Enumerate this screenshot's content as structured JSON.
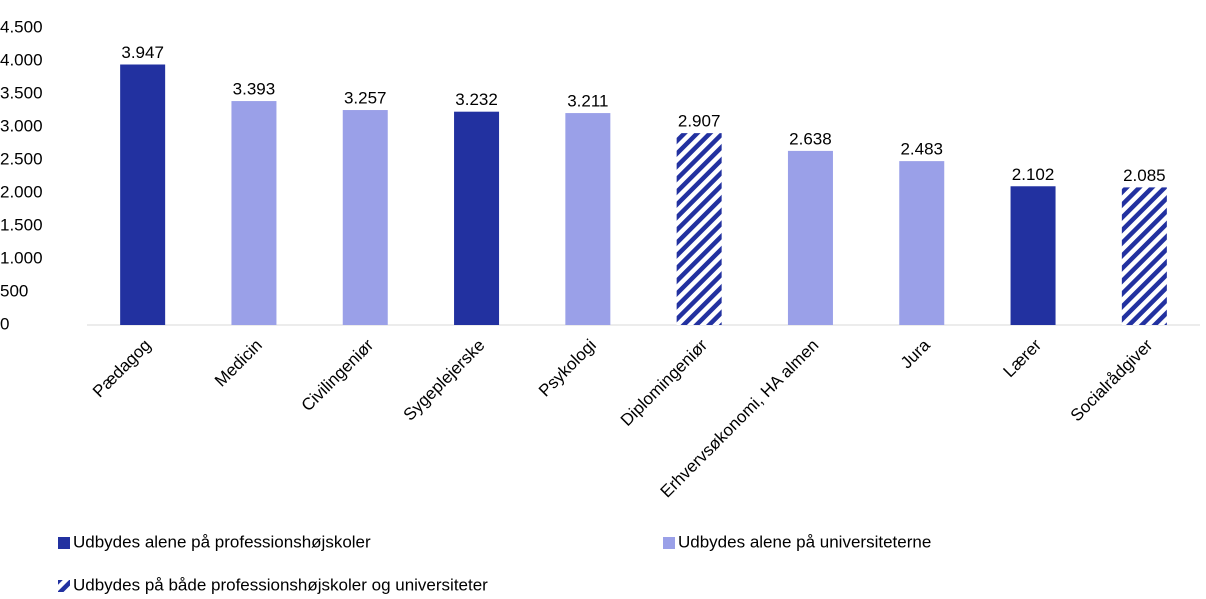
{
  "chart_data": {
    "type": "bar",
    "categories": [
      "Pædagog",
      "Medicin",
      "Civilingeniør",
      "Sygeplejerske",
      "Psykologi",
      "Diplomingeniør",
      "Erhvervsøkonomi, HA almen",
      "Jura",
      "Lærer",
      "Socialrådgiver"
    ],
    "series": [
      {
        "name": "Udbydes alene på professionshøjskoler",
        "color": "#2231a0",
        "values": [
          3947,
          null,
          null,
          3232,
          null,
          null,
          null,
          null,
          2102,
          null
        ],
        "value_labels": [
          "3.947",
          null,
          null,
          "3.232",
          null,
          null,
          null,
          null,
          "2.102",
          null
        ]
      },
      {
        "name": "Udbydes alene på universiteterne",
        "color": "#9aa0e8",
        "values": [
          null,
          3393,
          3257,
          null,
          3211,
          null,
          2638,
          2483,
          null,
          null
        ],
        "value_labels": [
          null,
          "3.393",
          "3.257",
          null,
          "3.211",
          null,
          "2.638",
          "2.483",
          null,
          null
        ]
      },
      {
        "name": "Udbydes på både professionshøjskoler og universiteter",
        "color": "#2231a0",
        "pattern": "hatch",
        "values": [
          null,
          null,
          null,
          null,
          null,
          2907,
          null,
          null,
          null,
          2085
        ],
        "value_labels": [
          null,
          null,
          null,
          null,
          null,
          "2.907",
          null,
          null,
          null,
          "2.085"
        ]
      }
    ],
    "ylim": [
      0,
      4500
    ],
    "yticks": [
      0,
      500,
      {
        "value": 1000,
        "label": "1.000"
      },
      {
        "value": 1500,
        "label": "1.500"
      },
      {
        "value": 2000,
        "label": "2.000"
      },
      {
        "value": 2500,
        "label": "2.500"
      },
      {
        "value": 3000,
        "label": "3.000"
      },
      {
        "value": 3500,
        "label": "3.500"
      },
      {
        "value": 4000,
        "label": "4.000"
      },
      {
        "value": 4500,
        "label": "4.500"
      }
    ],
    "grid": false
  }
}
